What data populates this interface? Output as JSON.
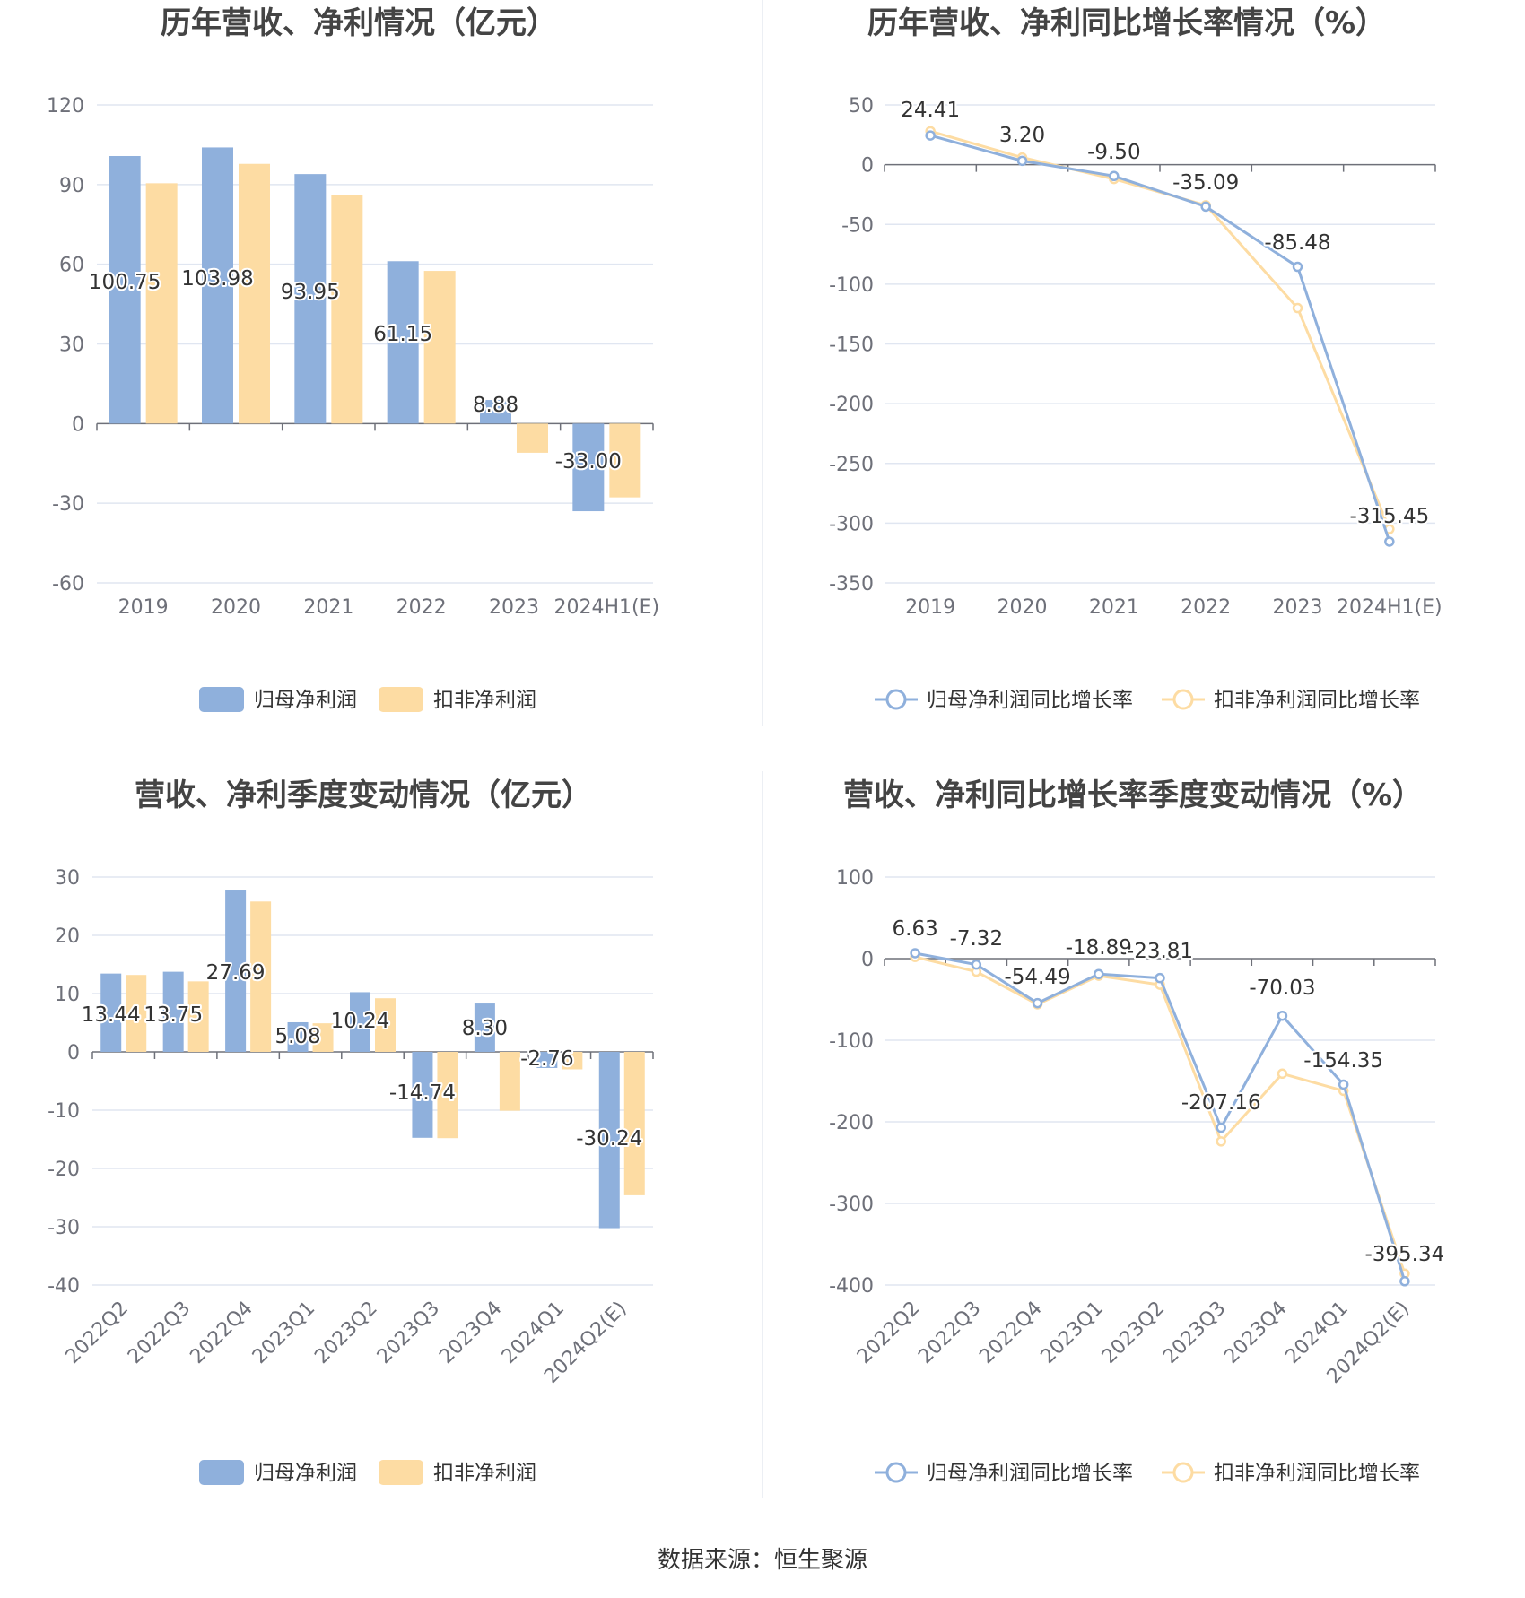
{
  "source": "数据来源：恒生聚源",
  "colors": {
    "blue": "#8fb0dc",
    "orange": "#fddca3",
    "grid": "#e0e6f1",
    "axis": "#6e7079"
  },
  "chart_data": [
    {
      "type": "bar",
      "title": "历年营收、净利情况（亿元）",
      "categories": [
        "2019",
        "2020",
        "2021",
        "2022",
        "2023",
        "2024H1(E)"
      ],
      "series": [
        {
          "name": "归母净利润",
          "values": [
            100.75,
            103.98,
            93.95,
            61.15,
            8.88,
            -33.0
          ]
        },
        {
          "name": "扣非净利润",
          "values": [
            90.5,
            97.8,
            86.0,
            57.5,
            -11.0,
            -27.8
          ]
        }
      ],
      "data_labels": [
        "100.75",
        "103.98",
        "93.95",
        "61.15",
        "8.88",
        "-33.00"
      ],
      "yticks": [
        "120",
        "90",
        "60",
        "30",
        "0",
        "-30",
        "-60"
      ],
      "ylim": [
        -60,
        120
      ]
    },
    {
      "type": "line",
      "title": "历年营收、净利同比增长率情况（%）",
      "categories": [
        "2019",
        "2020",
        "2021",
        "2022",
        "2023",
        "2024H1(E)"
      ],
      "series": [
        {
          "name": "归母净利润同比增长率",
          "values": [
            24.41,
            3.2,
            -9.5,
            -35.09,
            -85.48,
            -315.45
          ]
        },
        {
          "name": "扣非净利润同比增长率",
          "values": [
            28.0,
            6.0,
            -12.0,
            -34.0,
            -120.0,
            -305.0
          ]
        }
      ],
      "data_labels": [
        "24.41",
        "3.20",
        "-9.50",
        "-35.09",
        "-85.48",
        "-315.45"
      ],
      "yticks": [
        "50",
        "0",
        "-50",
        "-100",
        "-150",
        "-200",
        "-250",
        "-300",
        "-350"
      ],
      "ylim": [
        -350,
        50
      ]
    },
    {
      "type": "bar",
      "title": "营收、净利季度变动情况（亿元）",
      "categories": [
        "2022Q2",
        "2022Q3",
        "2022Q4",
        "2023Q1",
        "2023Q2",
        "2023Q3",
        "2023Q4",
        "2024Q1",
        "2024Q2(E)"
      ],
      "series": [
        {
          "name": "归母净利润",
          "values": [
            13.44,
            13.75,
            27.69,
            5.08,
            10.24,
            -14.74,
            8.3,
            -2.76,
            -30.24
          ]
        },
        {
          "name": "扣非净利润",
          "values": [
            13.2,
            12.1,
            25.8,
            4.9,
            9.2,
            -14.8,
            -10.1,
            -3.0,
            -24.6
          ]
        }
      ],
      "data_labels": [
        "13.44",
        "13.75",
        "27.69",
        "5.08",
        "10.24",
        "-14.74",
        "8.30",
        "-2.76",
        "-30.24"
      ],
      "yticks": [
        "30",
        "20",
        "10",
        "0",
        "-10",
        "-20",
        "-30",
        "-40"
      ],
      "ylim": [
        -40,
        30
      ]
    },
    {
      "type": "line",
      "title": "营收、净利同比增长率季度变动情况（%）",
      "categories": [
        "2022Q2",
        "2022Q3",
        "2022Q4",
        "2023Q1",
        "2023Q2",
        "2023Q3",
        "2023Q4",
        "2024Q1",
        "2024Q2(E)"
      ],
      "series": [
        {
          "name": "归母净利润同比增长率",
          "values": [
            6.63,
            -7.32,
            -54.49,
            -18.89,
            -23.81,
            -207.16,
            -70.03,
            -154.35,
            -395.34
          ]
        },
        {
          "name": "扣非净利润同比增长率",
          "values": [
            2.0,
            -16.0,
            -56.0,
            -21.0,
            -32.0,
            -224.0,
            -141.0,
            -162.0,
            -386.0
          ]
        }
      ],
      "data_labels": [
        "6.63",
        "-7.32",
        "-54.49",
        "-18.89",
        "-23.81",
        "-207.16",
        "-70.03",
        "-154.35",
        "-395.34"
      ],
      "yticks": [
        "100",
        "0",
        "-100",
        "-200",
        "-300",
        "-400"
      ],
      "ylim": [
        -400,
        100
      ]
    }
  ]
}
